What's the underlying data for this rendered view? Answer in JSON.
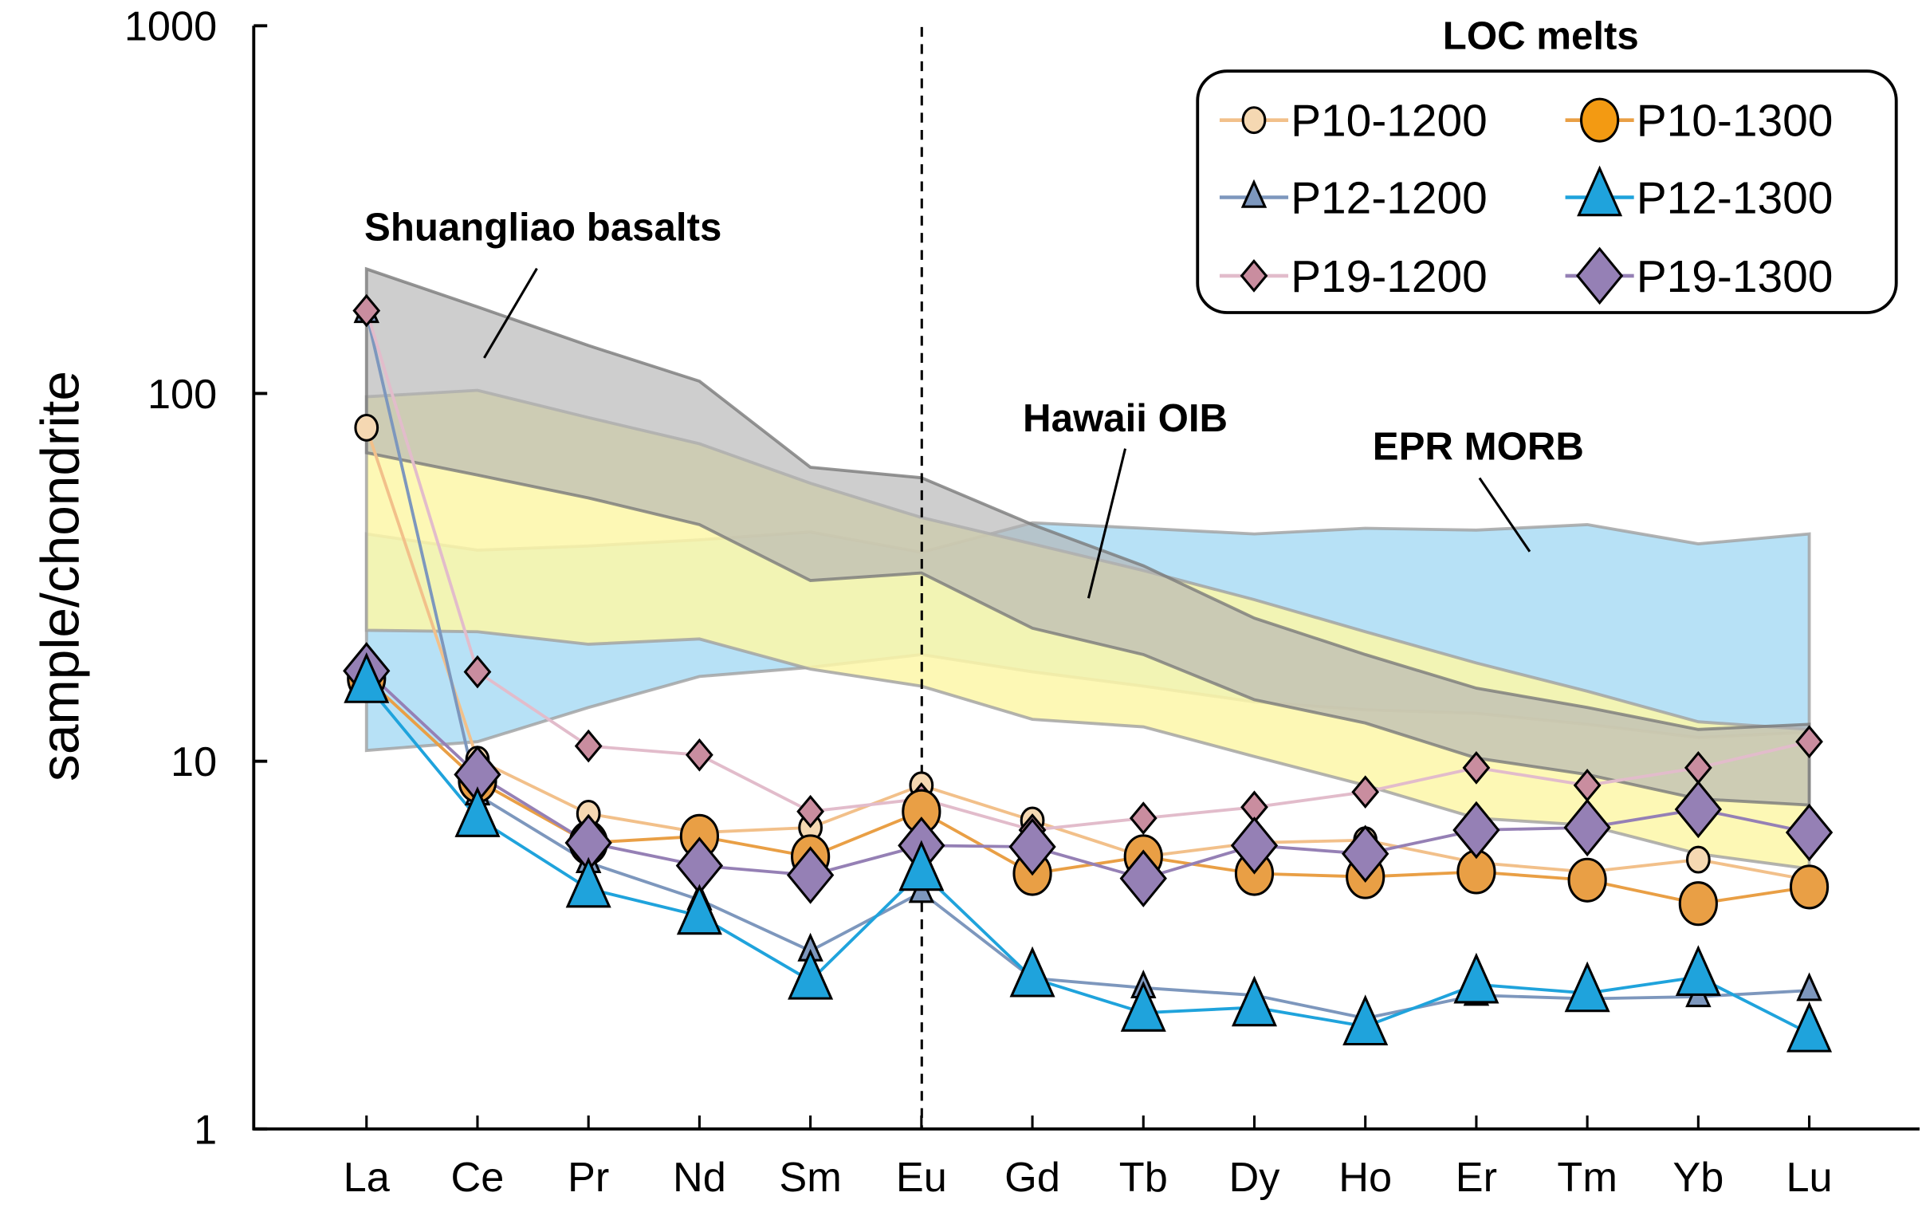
{
  "chart_data": {
    "type": "line",
    "title": "",
    "xlabel": "",
    "ylabel": "sample/chondrite",
    "yscale": "log",
    "ylim": [
      1,
      1000
    ],
    "yticks": [
      "1",
      "10",
      "100",
      "1000"
    ],
    "yticks_values": [
      1,
      10,
      100,
      1000
    ],
    "categories": [
      "La",
      "Ce",
      "Pr",
      "Nd",
      "Sm",
      "Eu",
      "Gd",
      "Tb",
      "Dy",
      "Ho",
      "Er",
      "Tm",
      "Yb",
      "Lu"
    ],
    "reference_line": {
      "category": "Eu",
      "style": "dashed"
    },
    "legend": {
      "title": "LOC melts",
      "position": "top-right",
      "columns": 2
    },
    "bands": [
      {
        "name": "EPR MORB",
        "label": "EPR MORB",
        "fill": "#aadcf4",
        "edge": "#a0a0a0",
        "upper": [
          41.5,
          37.5,
          38.5,
          40,
          42,
          37,
          44.5,
          43,
          41.5,
          43,
          42.5,
          44,
          39,
          41.5
        ],
        "lower": [
          10.7,
          11.3,
          14,
          17,
          18,
          19.5,
          17.5,
          16,
          14.5,
          13.8,
          13.5,
          12.6,
          11.6,
          12
        ]
      },
      {
        "name": "Hawaii OIB",
        "label": "Hawaii OIB",
        "fill": "#fdf7a8",
        "edge": "#a0a0a0",
        "upper": [
          98,
          102,
          86,
          73,
          57,
          46,
          39,
          33,
          27.5,
          22.5,
          18.5,
          15.5,
          12.8,
          12.2
        ],
        "lower": [
          22.7,
          22.5,
          20.8,
          21.5,
          17.8,
          16,
          13,
          12.4,
          10.3,
          8.6,
          7.0,
          6.7,
          5.6,
          5.1
        ]
      },
      {
        "name": "Shuangliao basalts",
        "label": "Shuangliao basalts",
        "fill": "#b4b4b4",
        "edge": "#7a7a7a",
        "upper": [
          218,
          172,
          135,
          108,
          63,
          59,
          44,
          34,
          24.5,
          19.5,
          15.8,
          14,
          12.2,
          12.6
        ],
        "lower": [
          69,
          60,
          52,
          44,
          31,
          32.5,
          23,
          19.5,
          14.7,
          12.7,
          10.2,
          9.2,
          7.9,
          7.6
        ]
      }
    ],
    "series": [
      {
        "name": "P10-1200",
        "marker": "circle",
        "size": "small",
        "fill": "#f5d8b2",
        "line": "#f2c08a",
        "values": [
          80.7,
          10.1,
          7.2,
          6.4,
          6.6,
          8.6,
          6.9,
          5.5,
          6.0,
          6.1,
          5.3,
          5.0,
          5.4,
          4.75
        ]
      },
      {
        "name": "P12-1200",
        "marker": "triangle",
        "size": "small",
        "fill": "#7d97bd",
        "line": "#7d97bd",
        "values": [
          166,
          8.1,
          5.3,
          4.2,
          3.05,
          4.4,
          2.57,
          2.42,
          2.31,
          2.0,
          2.31,
          2.26,
          2.29,
          2.38
        ]
      },
      {
        "name": "P19-1200",
        "marker": "diamond",
        "size": "small",
        "fill": "#c98d9f",
        "line": "#e2bccb",
        "values": [
          168,
          17.5,
          11.0,
          10.4,
          7.3,
          7.9,
          6.5,
          7.0,
          7.5,
          8.25,
          9.6,
          8.6,
          9.6,
          11.3
        ]
      },
      {
        "name": "P10-1300",
        "marker": "circle",
        "size": "large",
        "fill": "#e99f45",
        "line": "#e99f45",
        "legend_fill": "#f39a12",
        "values": [
          16.8,
          8.85,
          6.0,
          6.25,
          5.5,
          7.3,
          4.95,
          5.5,
          4.95,
          4.85,
          5.0,
          4.75,
          4.1,
          4.55
        ]
      },
      {
        "name": "P19-1300",
        "marker": "diamond",
        "size": "large",
        "fill": "#9580b5",
        "line": "#9580b5",
        "values": [
          17.6,
          9.2,
          6.0,
          5.2,
          4.9,
          5.9,
          5.85,
          4.8,
          5.9,
          5.6,
          6.5,
          6.6,
          7.4,
          6.4
        ]
      },
      {
        "name": "P12-1300",
        "marker": "triangle",
        "size": "large",
        "fill": "#1fa3dc",
        "line": "#1fa3dc",
        "values": [
          16.2,
          7.0,
          4.5,
          3.8,
          2.53,
          5.0,
          2.57,
          2.07,
          2.14,
          1.9,
          2.47,
          2.34,
          2.59,
          1.82
        ]
      }
    ],
    "legend_order": [
      "P10-1200",
      "P10-1300",
      "P12-1200",
      "P12-1300",
      "P19-1200",
      "P19-1300"
    ]
  }
}
